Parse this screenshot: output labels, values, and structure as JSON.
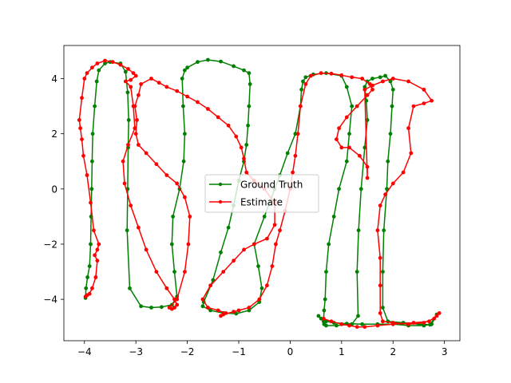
{
  "chart_data": {
    "type": "line",
    "title": "",
    "xlabel": "",
    "ylabel": "",
    "xlim": [
      -4.4,
      3.3
    ],
    "ylim": [
      -5.5,
      5.2
    ],
    "xticks": [
      -4,
      -3,
      -2,
      -1,
      0,
      1,
      2,
      3
    ],
    "yticks": [
      -4,
      -2,
      0,
      2,
      4
    ],
    "grid": false,
    "legend_position": "center",
    "series": [
      {
        "name": "Ground Truth",
        "color": "#008000",
        "marker": "circle",
        "x": [
          -3.98,
          -3.97,
          -3.94,
          -3.9,
          -3.88,
          -3.87,
          -3.86,
          -3.85,
          -3.84,
          -3.8,
          -3.76,
          -3.72,
          -3.6,
          -3.5,
          -3.3,
          -3.2,
          -3.16,
          -3.14,
          -3.15,
          -3.16,
          -3.17,
          -3.12,
          -2.9,
          -2.7,
          -2.5,
          -2.3,
          -2.2,
          -2.25,
          -2.3,
          -2.28,
          -2.15,
          -2.07,
          -2.05,
          -2.08,
          -2.1,
          -2.05,
          -2.0,
          -1.8,
          -1.6,
          -1.35,
          -1.1,
          -0.9,
          -0.8,
          -0.78,
          -0.8,
          -0.82,
          -0.85,
          -0.9,
          -1.0,
          -1.1,
          -1.2,
          -1.35,
          -1.5,
          -1.68,
          -1.7,
          -1.55,
          -1.3,
          -1.05,
          -0.8,
          -0.6,
          -0.55,
          -0.62,
          -0.7,
          -0.5,
          -0.3,
          -0.2,
          -0.05,
          0.1,
          0.2,
          0.22,
          0.25,
          0.3,
          0.45,
          0.7,
          1.0,
          1.1,
          1.2,
          1.15,
          1.1,
          0.95,
          0.85,
          0.75,
          0.7,
          0.68,
          0.66,
          0.65,
          0.66,
          0.7,
          0.9,
          1.2,
          1.32,
          1.3,
          1.33,
          1.38,
          1.45,
          1.5,
          1.48,
          1.45,
          1.5,
          1.6,
          1.75,
          1.85,
          1.95,
          2.0,
          1.98,
          1.95,
          1.9,
          1.88,
          1.82,
          1.8,
          1.8,
          1.9,
          2.2,
          2.5,
          2.72,
          2.85,
          2.75,
          2.6,
          2.3,
          2.0,
          1.7,
          1.4,
          1.1,
          0.85,
          0.7,
          0.6,
          0.55
        ],
        "y": [
          -3.95,
          -3.6,
          -3.2,
          -2.8,
          -2.0,
          -1.0,
          0.0,
          1.0,
          2.0,
          3.0,
          3.9,
          4.3,
          4.55,
          4.6,
          4.55,
          4.25,
          3.5,
          2.5,
          1.5,
          0.0,
          -1.5,
          -3.6,
          -4.25,
          -4.3,
          -4.28,
          -4.2,
          -3.9,
          -3.0,
          -2.0,
          -1.0,
          0.0,
          1.0,
          2.0,
          3.0,
          4.0,
          4.3,
          4.4,
          4.6,
          4.68,
          4.62,
          4.45,
          4.3,
          4.2,
          3.8,
          3.0,
          2.3,
          1.6,
          1.0,
          0.3,
          -0.6,
          -1.4,
          -2.3,
          -3.3,
          -4.1,
          -4.25,
          -4.4,
          -4.5,
          -4.52,
          -4.4,
          -4.1,
          -3.6,
          -2.8,
          -2.0,
          -1.0,
          0.0,
          0.5,
          1.3,
          2.0,
          3.0,
          3.6,
          3.9,
          4.05,
          4.15,
          4.2,
          4.1,
          3.7,
          3.0,
          2.0,
          1.0,
          0.0,
          -1.0,
          -2.0,
          -3.0,
          -4.0,
          -4.4,
          -4.8,
          -4.9,
          -4.95,
          -4.95,
          -4.9,
          -4.6,
          -3.0,
          -1.5,
          0.0,
          1.5,
          2.5,
          3.2,
          3.7,
          3.9,
          4.0,
          4.05,
          4.1,
          3.9,
          3.6,
          3.0,
          2.0,
          1.0,
          0.0,
          -1.5,
          -3.0,
          -4.3,
          -4.8,
          -4.85,
          -4.9,
          -4.92,
          -4.55,
          -4.9,
          -4.95,
          -4.95,
          -4.9,
          -4.9,
          -4.9,
          -4.88,
          -4.85,
          -4.8,
          -4.7,
          -4.6
        ]
      },
      {
        "name": "Estimate",
        "color": "#ff0000",
        "marker": "circle",
        "x": [
          -3.98,
          -3.95,
          -3.9,
          -3.85,
          -3.78,
          -3.75,
          -3.8,
          -3.75,
          -3.72,
          -3.82,
          -3.88,
          -3.95,
          -4.02,
          -4.05,
          -4.08,
          -4.1,
          -4.05,
          -4.0,
          -3.95,
          -3.85,
          -3.75,
          -3.6,
          -3.45,
          -3.3,
          -3.15,
          -3.05,
          -3.0,
          -3.1,
          -3.2,
          -3.1,
          -3.05,
          -3.02,
          -3.15,
          -3.25,
          -3.22,
          -3.1,
          -2.95,
          -2.8,
          -2.6,
          -2.4,
          -2.25,
          -2.2,
          -2.25,
          -2.3,
          -2.35,
          -2.2,
          -2.05,
          -1.98,
          -1.95,
          -2.05,
          -2.2,
          -2.4,
          -2.6,
          -2.8,
          -2.95,
          -3.0,
          -2.98,
          -3.02,
          -2.95,
          -2.9,
          -2.7,
          -2.55,
          -2.4,
          -2.2,
          -2.0,
          -1.8,
          -1.6,
          -1.4,
          -1.2,
          -1.05,
          -0.95,
          -0.9,
          -0.85,
          -0.7,
          -0.5,
          -0.3,
          -0.3,
          -0.45,
          -0.7,
          -0.9,
          -1.1,
          -1.3,
          -1.55,
          -1.7,
          -1.6,
          -1.4,
          -1.25,
          -1.35,
          -1.3,
          -1.1,
          -1.0,
          -0.8,
          -0.6,
          -0.45,
          -0.35,
          -0.28,
          -0.2,
          -0.1,
          0.0,
          0.05,
          0.1,
          0.15,
          0.2,
          0.3,
          0.4,
          0.6,
          0.8,
          1.0,
          1.2,
          1.4,
          1.55,
          1.6,
          1.5,
          1.3,
          1.1,
          0.95,
          0.9,
          1.0,
          1.15,
          1.35,
          1.5,
          1.5,
          1.45,
          1.6,
          1.8,
          2.0,
          2.3,
          2.6,
          2.75,
          2.6,
          2.4,
          2.3,
          2.35,
          2.2,
          2.0,
          1.85,
          1.75,
          1.7,
          1.75,
          1.75,
          1.75,
          1.8,
          2.0,
          2.3,
          2.6,
          2.8,
          2.9,
          2.85,
          2.7,
          2.4,
          2.0,
          1.7,
          1.45,
          1.3,
          1.15,
          1.0,
          0.8,
          0.65
        ],
        "y": [
          -3.9,
          -3.85,
          -3.8,
          -3.6,
          -3.2,
          -2.6,
          -2.4,
          -2.2,
          -2.0,
          -1.5,
          -0.5,
          0.5,
          1.2,
          1.8,
          2.2,
          2.5,
          3.3,
          4.0,
          4.2,
          4.4,
          4.55,
          4.65,
          4.6,
          4.5,
          4.35,
          4.2,
          4.1,
          3.95,
          3.9,
          3.7,
          3.0,
          2.2,
          1.6,
          1.0,
          0.2,
          -0.6,
          -1.4,
          -2.2,
          -3.0,
          -3.6,
          -4.0,
          -4.2,
          -4.3,
          -4.35,
          -4.3,
          -4.0,
          -3.0,
          -2.0,
          -1.0,
          -0.3,
          0.2,
          0.5,
          0.9,
          1.3,
          1.6,
          2.0,
          2.5,
          3.0,
          3.4,
          3.8,
          4.0,
          3.85,
          3.7,
          3.55,
          3.35,
          3.15,
          2.9,
          2.6,
          2.3,
          1.9,
          1.5,
          1.1,
          0.6,
          0.3,
          0.0,
          -0.5,
          -1.3,
          -1.8,
          -2.0,
          -2.2,
          -2.6,
          -3.0,
          -3.5,
          -4.0,
          -4.3,
          -4.4,
          -4.5,
          -4.6,
          -4.55,
          -4.45,
          -4.4,
          -4.3,
          -4.0,
          -3.5,
          -2.8,
          -2.0,
          -1.5,
          -0.8,
          0.0,
          0.6,
          1.2,
          2.0,
          3.0,
          3.8,
          4.1,
          4.2,
          4.18,
          4.12,
          4.05,
          4.0,
          3.8,
          3.6,
          3.4,
          3.0,
          2.6,
          2.2,
          1.8,
          1.5,
          1.5,
          1.2,
          0.8,
          0.4,
          3.6,
          3.75,
          3.9,
          4.0,
          3.9,
          3.6,
          3.2,
          3.1,
          3.0,
          2.2,
          1.3,
          0.6,
          0.2,
          -0.2,
          -0.6,
          -1.5,
          -2.5,
          -3.5,
          -4.5,
          -4.8,
          -4.85,
          -4.9,
          -4.85,
          -4.7,
          -4.5,
          -4.6,
          -4.8,
          -4.85,
          -4.9,
          -4.95,
          -5.0,
          -5.0,
          -4.95,
          -4.9,
          -4.8,
          -4.7
        ]
      }
    ]
  }
}
